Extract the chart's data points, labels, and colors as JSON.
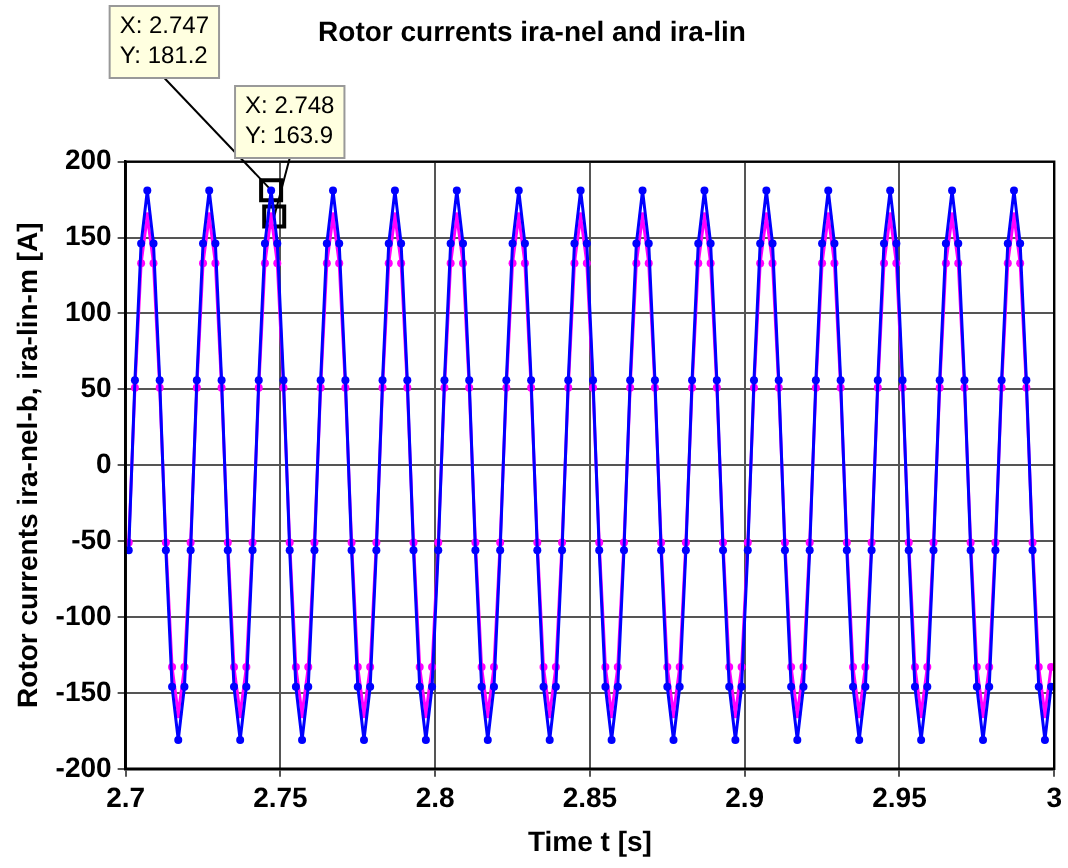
{
  "chart_data": {
    "type": "line",
    "title": "Rotor currents ira-nel and ira-lin",
    "xlabel": "Time t [s]",
    "ylabel": "Rotor currents ira-nel-b, ira-lin-m [A]",
    "x": [
      2.701,
      2.703,
      2.705,
      2.707,
      2.709,
      2.711,
      2.713,
      2.715,
      2.717,
      2.719,
      2.721,
      2.723,
      2.725,
      2.727,
      2.729,
      2.731,
      2.733,
      2.735,
      2.737,
      2.739,
      2.741,
      2.743,
      2.745,
      2.747,
      2.749,
      2.751,
      2.753,
      2.755,
      2.757,
      2.759,
      2.761,
      2.763,
      2.765,
      2.767,
      2.769,
      2.771,
      2.773,
      2.775,
      2.777,
      2.779,
      2.781,
      2.783,
      2.785,
      2.787,
      2.789,
      2.791,
      2.793,
      2.795,
      2.797,
      2.799,
      2.801,
      2.803,
      2.805,
      2.807,
      2.809,
      2.811,
      2.813,
      2.815,
      2.817,
      2.819,
      2.821,
      2.823,
      2.825,
      2.827,
      2.829,
      2.831,
      2.833,
      2.835,
      2.837,
      2.839,
      2.841,
      2.843,
      2.845,
      2.847,
      2.849,
      2.851,
      2.853,
      2.855,
      2.857,
      2.859,
      2.861,
      2.863,
      2.865,
      2.867,
      2.869,
      2.871,
      2.873,
      2.875,
      2.877,
      2.879,
      2.881,
      2.883,
      2.885,
      2.887,
      2.889,
      2.891,
      2.893,
      2.895,
      2.897,
      2.899,
      2.901,
      2.903,
      2.905,
      2.907,
      2.909,
      2.911,
      2.913,
      2.915,
      2.917,
      2.919,
      2.921,
      2.923,
      2.925,
      2.927,
      2.929,
      2.931,
      2.933,
      2.935,
      2.937,
      2.939,
      2.941,
      2.943,
      2.945,
      2.947,
      2.949,
      2.951,
      2.953,
      2.955,
      2.957,
      2.959,
      2.961,
      2.963,
      2.965,
      2.967,
      2.969,
      2.971,
      2.973,
      2.975,
      2.977,
      2.979,
      2.981,
      2.983,
      2.985,
      2.987,
      2.989,
      2.991,
      2.993,
      2.995,
      2.997,
      2.999
    ],
    "series": [
      {
        "color": "#0000ff",
        "values": [
          -56,
          56,
          146,
          181,
          146,
          56,
          -56,
          -146,
          -181,
          -146,
          -56,
          56,
          146,
          181,
          146,
          56,
          -56,
          -146,
          -181,
          -146,
          -56,
          56,
          146,
          181,
          146,
          56,
          -56,
          -146,
          -181,
          -146,
          -56,
          56,
          146,
          181,
          146,
          56,
          -56,
          -146,
          -181,
          -146,
          -56,
          56,
          146,
          181,
          146,
          56,
          -56,
          -146,
          -181,
          -146,
          -56,
          56,
          146,
          181,
          146,
          56,
          -56,
          -146,
          -181,
          -146,
          -56,
          56,
          146,
          181,
          146,
          56,
          -56,
          -146,
          -181,
          -146,
          -56,
          56,
          146,
          181,
          146,
          56,
          -56,
          -146,
          -181,
          -146,
          -56,
          56,
          146,
          181,
          146,
          56,
          -56,
          -146,
          -181,
          -146,
          -56,
          56,
          146,
          181,
          146,
          56,
          -56,
          -146,
          -181,
          -146,
          -56,
          56,
          146,
          181,
          146,
          56,
          -56,
          -146,
          -181,
          -146,
          -56,
          56,
          146,
          181,
          146,
          56,
          -56,
          -146,
          -181,
          -146,
          -56,
          56,
          146,
          181,
          146,
          56,
          -56,
          -146,
          -181,
          -146,
          -56,
          56,
          146,
          181,
          146,
          56,
          -56,
          -146,
          -181,
          -146,
          -56,
          56,
          146,
          181,
          146,
          56,
          -56,
          -146,
          -181,
          -146
        ]
      },
      {
        "color": "#ff00ff",
        "values": [
          -51,
          51,
          133,
          164,
          133,
          51,
          -51,
          -133,
          -164,
          -133,
          -51,
          51,
          133,
          164,
          133,
          51,
          -51,
          -133,
          -164,
          -133,
          -51,
          51,
          133,
          164,
          133,
          51,
          -51,
          -133,
          -164,
          -133,
          -51,
          51,
          133,
          164,
          133,
          51,
          -51,
          -133,
          -164,
          -133,
          -51,
          51,
          133,
          164,
          133,
          51,
          -51,
          -133,
          -164,
          -133,
          -51,
          51,
          133,
          164,
          133,
          51,
          -51,
          -133,
          -164,
          -133,
          -51,
          51,
          133,
          164,
          133,
          51,
          -51,
          -133,
          -164,
          -133,
          -51,
          51,
          133,
          164,
          133,
          51,
          -51,
          -133,
          -164,
          -133,
          -51,
          51,
          133,
          164,
          133,
          51,
          -51,
          -133,
          -164,
          -133,
          -51,
          51,
          133,
          164,
          133,
          51,
          -51,
          -133,
          -164,
          -133,
          -51,
          51,
          133,
          164,
          133,
          51,
          -51,
          -133,
          -164,
          -133,
          -51,
          51,
          133,
          164,
          133,
          51,
          -51,
          -133,
          -164,
          -133,
          -51,
          51,
          133,
          164,
          133,
          51,
          -51,
          -133,
          -164,
          -133,
          -51,
          51,
          133,
          164,
          133,
          51,
          -51,
          -133,
          -164,
          -133,
          -51,
          51,
          133,
          164,
          133,
          51,
          -51,
          -133,
          -164,
          -133
        ]
      }
    ],
    "xlim": [
      2.7,
      3
    ],
    "xticks": [
      2.7,
      2.75,
      2.8,
      2.85,
      2.9,
      2.95,
      3
    ],
    "ylim": [
      -200,
      200
    ],
    "yticks": [
      -200,
      -150,
      -100,
      -50,
      0,
      50,
      100,
      150,
      200
    ],
    "annotations": [
      {
        "text": "X: 2.747\nY: 181.2",
        "x": 2.747,
        "y": 181.2
      },
      {
        "text": "X: 2.748\nY: 163.9",
        "x": 2.748,
        "y": 163.9
      }
    ],
    "grid": true,
    "legend": false,
    "marker": "circle",
    "line_style": "solid"
  }
}
